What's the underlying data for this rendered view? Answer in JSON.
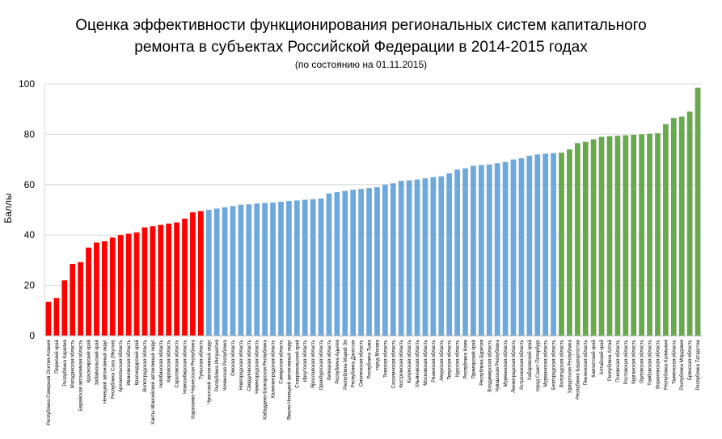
{
  "chart_data": {
    "type": "bar",
    "title": "Оценка эффективности функционирования региональных систем капитального",
    "title_line2": "ремонта в субъектах Российской Федерации в 2014-2015 годах",
    "subtitle": "(по состоянию на 01.11.2015)",
    "xlabel": "",
    "ylabel": "Баллы",
    "ylim": [
      0,
      100
    ],
    "yticks": [
      "0",
      "20",
      "40",
      "60",
      "80",
      "100"
    ],
    "grid": true,
    "legend": "none",
    "colors": [
      "#ff0000",
      "#6fa8dc",
      "#6aa84f"
    ],
    "categories": [
      "Республика Северная Осетия-Алания",
      "Пермский край",
      "Республика Карелия",
      "Магаданская область",
      "Еврейская автономная область",
      "Красноярский край",
      "Забайкальский край",
      "Ненецкий автономный округ",
      "Республика Саха (Якутия)",
      "Архангельская область",
      "Ивановская область",
      "Краснодарский край",
      "Волгоградская область",
      "Ханты-Мансийский автономный округ",
      "Челябинская область",
      "Кировская область",
      "Саратовская область",
      "Новосибирская область",
      "Карачаево-Черкесская Республика",
      "Тульская область",
      "Чукотский автономный округ",
      "Республика Ингушетия",
      "Чеченская Республика",
      "Омская область",
      "Новгородская область",
      "Свердловская область",
      "Нижегородская область",
      "Кабардино-Балкарская Республика",
      "Калининградская область",
      "Самарская область",
      "Ямало-Ненецкий автономный округ",
      "Ставропольский край",
      "Иркутская область",
      "Ярославская область",
      "Оренбургская область",
      "Липецкая область",
      "Республика Адыгея",
      "Республика Марий Эл",
      "Республика Дагестан",
      "Смоленская область",
      "Республика Тыва",
      "город Москва",
      "Томская область",
      "Сахалинская область",
      "Костромская область",
      "Калужская область",
      "Ульяновская область",
      "Московская область",
      "Рязанская область",
      "Амурская область",
      "Тверская область",
      "Курская область",
      "Республика Коми",
      "Приморский край",
      "Республика Бурятия",
      "Владимирская область",
      "Чувашская Республика",
      "Мурманская область",
      "Ленинградская область",
      "Астраханская область",
      "Хабаровский край",
      "город Санкт-Петербург",
      "Мурманская область",
      "Белгородская область",
      "Вологодская область",
      "Удмуртская Республика",
      "Республика Башкортостан",
      "Пензенская область",
      "Камчатский край",
      "Алтайский край",
      "Республика Алтай",
      "Псковская область",
      "Ростовская область",
      "Курганская область",
      "Орловская область",
      "Тамбовская область",
      "Воронежская область",
      "Республика Калмыкия",
      "Тюменская область",
      "Республика Мордовия",
      "Брянская область",
      "Республика Татарстан"
    ],
    "values": [
      13.5,
      15,
      22,
      28.5,
      29.2,
      35,
      37,
      37.5,
      39,
      40,
      40.5,
      41,
      43,
      43.5,
      44,
      44.5,
      45,
      46.5,
      49,
      49.5,
      50,
      50.5,
      51,
      51.5,
      52,
      52.2,
      52.5,
      52.7,
      52.9,
      53.2,
      53.5,
      53.7,
      54,
      54.2,
      54.5,
      56.5,
      57,
      57.5,
      58,
      58.3,
      58.6,
      59,
      60,
      60.5,
      61.5,
      61.7,
      62,
      62.5,
      63,
      63.3,
      64.5,
      66,
      66.5,
      67.5,
      67.8,
      68,
      68.5,
      69,
      70,
      70.5,
      71.5,
      72,
      72.3,
      72.5,
      72.7,
      74,
      76.5,
      77,
      78,
      79,
      79.2,
      79.4,
      79.6,
      79.8,
      80,
      80.2,
      80.4,
      84,
      86.5,
      87,
      89,
      98.5
    ],
    "groups": [
      {
        "color_index": 0,
        "count": 20
      },
      {
        "color_index": 1,
        "count": 44
      },
      {
        "color_index": 2,
        "count": 18
      }
    ]
  }
}
